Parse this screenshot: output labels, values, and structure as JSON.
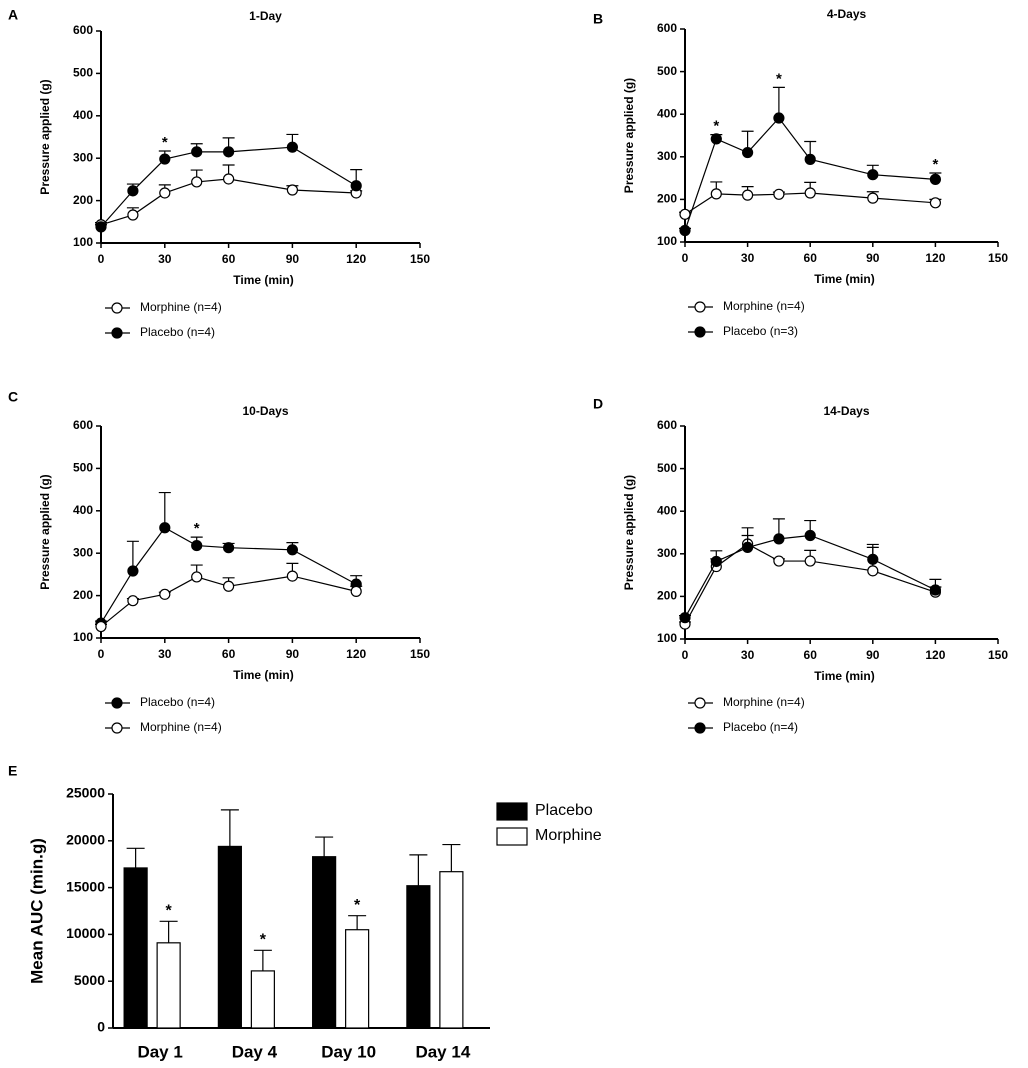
{
  "chart_data": [
    {
      "type": "line",
      "panel": "A",
      "title": "1-Day",
      "ylabel": "Pressure applied (g)",
      "xlabel": "Time (min)",
      "x": [
        0,
        15,
        30,
        45,
        60,
        90,
        120
      ],
      "xlim": [
        0,
        150
      ],
      "xticks": [
        0,
        30,
        60,
        90,
        120,
        150
      ],
      "ylim": [
        100,
        600
      ],
      "yticks": [
        100,
        200,
        300,
        400,
        500,
        600
      ],
      "series": [
        {
          "name": "Morphine (n=4)",
          "color": "#000000",
          "marker_fill": "#ffffff",
          "values": [
            143,
            166,
            218,
            244,
            251,
            225,
            218
          ],
          "errors": [
            5,
            17,
            19,
            28,
            33,
            10,
            5
          ]
        },
        {
          "name": "Placebo (n=4)",
          "color": "#000000",
          "marker_fill": "#000000",
          "values": [
            138,
            223,
            298,
            315,
            315,
            326,
            235
          ],
          "errors": [
            5,
            16,
            19,
            19,
            33,
            30,
            38
          ]
        }
      ],
      "annotations": [
        {
          "x": 30,
          "text": "*"
        }
      ]
    },
    {
      "type": "line",
      "panel": "B",
      "title": "4-Days",
      "ylabel": "Pressure applied (g)",
      "xlabel": "Time (min)",
      "x": [
        0,
        15,
        30,
        45,
        60,
        90,
        120
      ],
      "xlim": [
        0,
        150
      ],
      "xticks": [
        0,
        30,
        60,
        90,
        120,
        150
      ],
      "ylim": [
        100,
        600
      ],
      "yticks": [
        100,
        200,
        300,
        400,
        500,
        600
      ],
      "series": [
        {
          "name": "Morphine (n=4)",
          "color": "#000000",
          "marker_fill": "#ffffff",
          "values": [
            165,
            213,
            210,
            212,
            215,
            203,
            192
          ],
          "errors": [
            5,
            28,
            20,
            5,
            25,
            15,
            8
          ]
        },
        {
          "name": "Placebo (n=3)",
          "color": "#000000",
          "marker_fill": "#000000",
          "values": [
            127,
            342,
            310,
            391,
            294,
            258,
            247
          ],
          "errors": [
            5,
            10,
            50,
            72,
            42,
            22,
            15
          ]
        }
      ],
      "annotations": [
        {
          "x": 15,
          "text": "*"
        },
        {
          "x": 45,
          "text": "*"
        },
        {
          "x": 120,
          "text": "*"
        }
      ]
    },
    {
      "type": "line",
      "panel": "C",
      "title": "10-Days",
      "ylabel": "Pressure applied (g)",
      "xlabel": "Time (min)",
      "x": [
        0,
        15,
        30,
        45,
        60,
        90,
        120
      ],
      "xlim": [
        0,
        150
      ],
      "xticks": [
        0,
        30,
        60,
        90,
        120,
        150
      ],
      "ylim": [
        100,
        600
      ],
      "yticks": [
        100,
        200,
        300,
        400,
        500,
        600
      ],
      "series": [
        {
          "name": "Placebo (n=4)",
          "color": "#000000",
          "marker_fill": "#000000",
          "values": [
            135,
            258,
            360,
            318,
            313,
            308,
            227
          ],
          "errors": [
            5,
            70,
            83,
            20,
            10,
            17,
            20
          ]
        },
        {
          "name": "Morphine (n=4)",
          "color": "#000000",
          "marker_fill": "#ffffff",
          "values": [
            127,
            188,
            203,
            244,
            222,
            246,
            210
          ],
          "errors": [
            5,
            5,
            5,
            28,
            20,
            30,
            12
          ]
        }
      ],
      "annotations": [
        {
          "x": 45,
          "text": "*"
        }
      ]
    },
    {
      "type": "line",
      "panel": "D",
      "title": "14-Days",
      "ylabel": "Pressure applied (g)",
      "xlabel": "Time (min)",
      "x": [
        0,
        15,
        30,
        45,
        60,
        90,
        120
      ],
      "xlim": [
        0,
        150
      ],
      "xticks": [
        0,
        30,
        60,
        90,
        120,
        150
      ],
      "ylim": [
        100,
        600
      ],
      "yticks": [
        100,
        200,
        300,
        400,
        500,
        600
      ],
      "series": [
        {
          "name": "Morphine (n=4)",
          "color": "#000000",
          "marker_fill": "#ffffff",
          "values": [
            135,
            270,
            323,
            283,
            283,
            260,
            210
          ],
          "errors": [
            5,
            18,
            38,
            5,
            25,
            55,
            12
          ]
        },
        {
          "name": "Placebo (n=4)",
          "color": "#000000",
          "marker_fill": "#000000",
          "values": [
            150,
            282,
            315,
            335,
            343,
            287,
            215
          ],
          "errors": [
            5,
            25,
            28,
            47,
            35,
            35,
            25
          ]
        }
      ],
      "annotations": []
    },
    {
      "type": "bar",
      "panel": "E",
      "ylabel": "Mean AUC (min.g)",
      "categories": [
        "Day 1",
        "Day 4",
        "Day 10",
        "Day 14"
      ],
      "ylim": [
        0,
        25000
      ],
      "yticks": [
        0,
        5000,
        10000,
        15000,
        20000,
        25000
      ],
      "series": [
        {
          "name": "Placebo",
          "color": "#000000",
          "values": [
            17100,
            19400,
            18300,
            15200
          ],
          "errors": [
            2100,
            3900,
            2100,
            3300
          ]
        },
        {
          "name": "Morphine",
          "color": "#ffffff",
          "values": [
            9100,
            6100,
            10500,
            16700
          ],
          "errors": [
            2300,
            2200,
            1500,
            2900
          ]
        }
      ],
      "annotations": [
        {
          "category": "Day 1",
          "text": "*"
        },
        {
          "category": "Day 4",
          "text": "*"
        },
        {
          "category": "Day 10",
          "text": "*"
        }
      ]
    }
  ]
}
